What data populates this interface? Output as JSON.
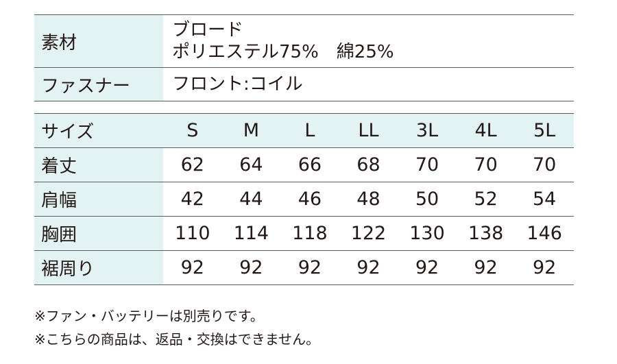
{
  "spec": {
    "material_label": "素材",
    "material_lines": [
      "ブロード",
      "ポリエステル75%　綿25%"
    ],
    "fastener_label": "ファスナー",
    "fastener_value": "フロント:コイル"
  },
  "size_chart": {
    "header_label": "サイズ",
    "sizes": [
      "S",
      "M",
      "L",
      "LL",
      "3L",
      "4L",
      "5L"
    ],
    "rows": [
      {
        "label": "着丈",
        "values": [
          "62",
          "64",
          "66",
          "68",
          "70",
          "70",
          "70"
        ]
      },
      {
        "label": "肩幅",
        "values": [
          "42",
          "44",
          "46",
          "48",
          "50",
          "52",
          "54"
        ]
      },
      {
        "label": "胸囲",
        "values": [
          "110",
          "114",
          "118",
          "122",
          "130",
          "138",
          "146"
        ]
      },
      {
        "label": "裾周り",
        "values": [
          "92",
          "92",
          "92",
          "92",
          "92",
          "92",
          "92"
        ]
      }
    ]
  },
  "notes": [
    "※ファン・バッテリーは別売りです。",
    "※こちらの商品は、返品・交換はできません。"
  ]
}
